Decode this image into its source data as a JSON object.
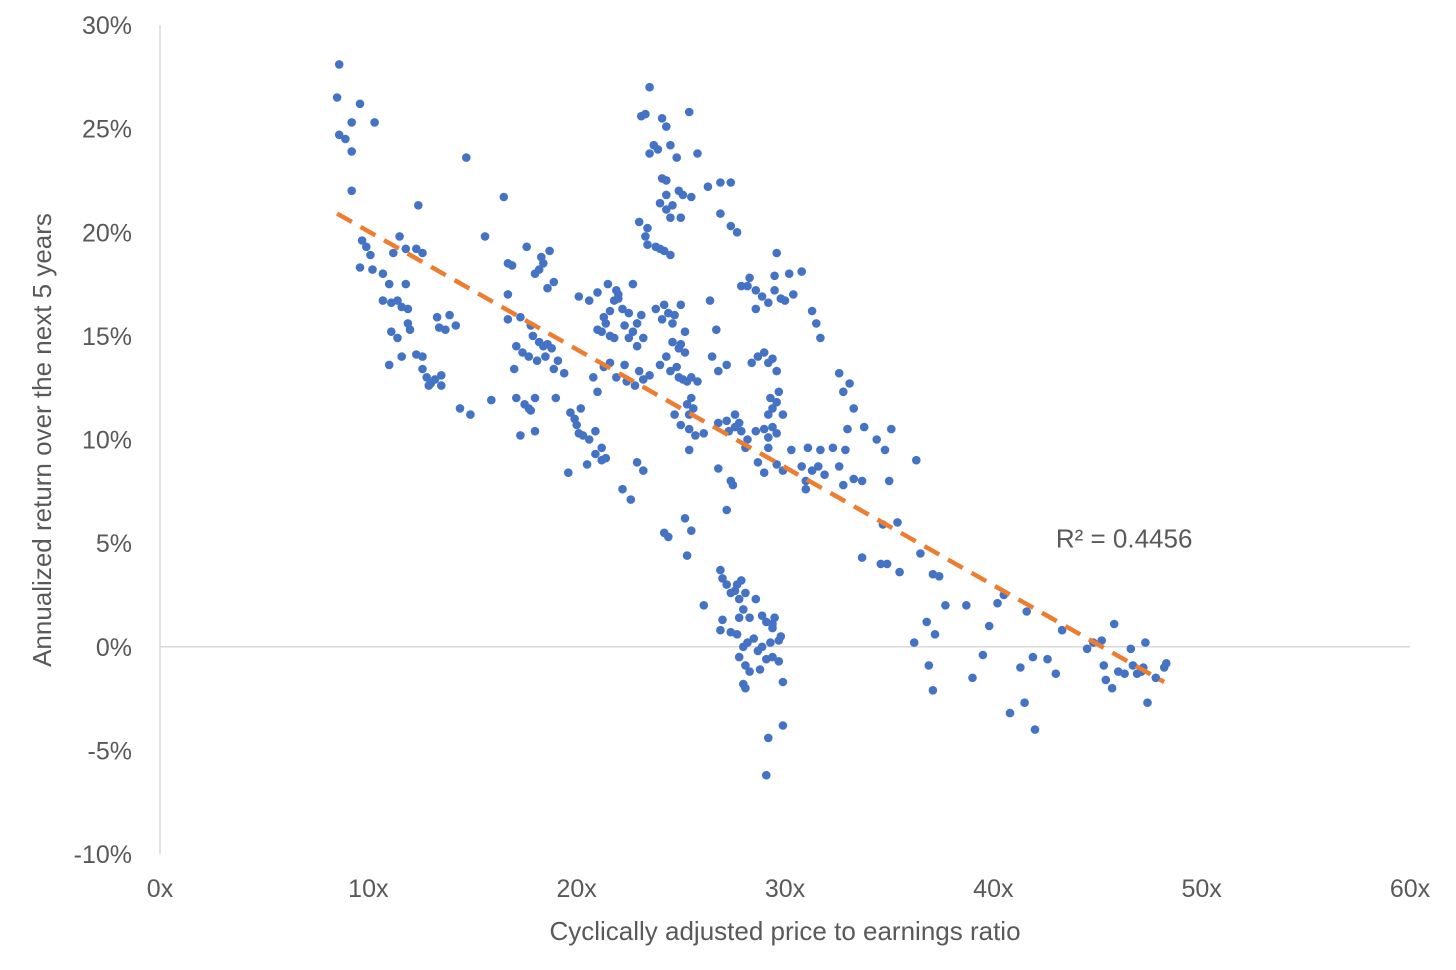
{
  "chart_data": {
    "type": "scatter",
    "xlabel": "Cyclically adjusted price to earnings ratio",
    "ylabel": "Annualized return over the next 5 years",
    "xlim": [
      0,
      60
    ],
    "ylim": [
      -10,
      30
    ],
    "x_ticks": [
      0,
      10,
      20,
      30,
      40,
      50,
      60
    ],
    "x_tick_labels": [
      "0x",
      "10x",
      "20x",
      "30x",
      "40x",
      "50x",
      "60x"
    ],
    "y_ticks": [
      -10,
      -5,
      0,
      5,
      10,
      15,
      20,
      25,
      30
    ],
    "y_tick_labels": [
      "-10%",
      "-5%",
      "0%",
      "5%",
      "10%",
      "15%",
      "20%",
      "25%",
      "30%"
    ],
    "grid": false,
    "legend": "none",
    "point_color": "#4472C4",
    "trendline": {
      "type": "linear",
      "color": "#ED7D31",
      "style": "dashed",
      "x": [
        8.5,
        48.2
      ],
      "y": [
        20.9,
        -1.7
      ]
    },
    "annotations": [
      {
        "text": "R² = 0.4456",
        "x": 43,
        "y": 4.8
      }
    ],
    "points": [
      [
        8.6,
        28.1
      ],
      [
        8.5,
        26.5
      ],
      [
        8.6,
        24.7
      ],
      [
        8.9,
        24.5
      ],
      [
        9.2,
        23.9
      ],
      [
        9.2,
        25.3
      ],
      [
        9.6,
        26.2
      ],
      [
        10.3,
        25.3
      ],
      [
        9.2,
        22.0
      ],
      [
        9.7,
        19.6
      ],
      [
        9.9,
        19.3
      ],
      [
        10.1,
        18.9
      ],
      [
        9.6,
        18.3
      ],
      [
        10.2,
        18.2
      ],
      [
        10.7,
        18.0
      ],
      [
        11.2,
        19.0
      ],
      [
        11.5,
        19.8
      ],
      [
        11.8,
        19.2
      ],
      [
        12.3,
        19.2
      ],
      [
        12.6,
        19.0
      ],
      [
        12.4,
        21.3
      ],
      [
        11.0,
        17.5
      ],
      [
        11.8,
        17.5
      ],
      [
        10.7,
        16.7
      ],
      [
        11.1,
        16.6
      ],
      [
        11.4,
        16.7
      ],
      [
        11.6,
        16.4
      ],
      [
        11.9,
        16.3
      ],
      [
        11.9,
        15.6
      ],
      [
        11.1,
        15.2
      ],
      [
        11.4,
        14.9
      ],
      [
        12.0,
        15.3
      ],
      [
        11.0,
        13.6
      ],
      [
        11.6,
        14.0
      ],
      [
        12.3,
        14.1
      ],
      [
        12.6,
        13.4
      ],
      [
        12.6,
        14.0
      ],
      [
        12.8,
        13.0
      ],
      [
        13.0,
        12.7
      ],
      [
        12.9,
        12.6
      ],
      [
        13.2,
        12.9
      ],
      [
        13.5,
        13.1
      ],
      [
        13.5,
        12.6
      ],
      [
        13.4,
        15.4
      ],
      [
        13.7,
        15.3
      ],
      [
        13.3,
        15.9
      ],
      [
        13.9,
        16.0
      ],
      [
        14.2,
        15.5
      ],
      [
        14.4,
        11.5
      ],
      [
        14.9,
        11.2
      ],
      [
        14.7,
        23.6
      ],
      [
        15.6,
        19.8
      ],
      [
        15.9,
        11.9
      ],
      [
        16.5,
        21.7
      ],
      [
        16.7,
        18.5
      ],
      [
        16.9,
        18.4
      ],
      [
        16.7,
        17.0
      ],
      [
        16.7,
        15.8
      ],
      [
        17.3,
        15.9
      ],
      [
        17.1,
        14.5
      ],
      [
        17.4,
        14.2
      ],
      [
        17.7,
        14.0
      ],
      [
        17.0,
        13.4
      ],
      [
        17.1,
        12.0
      ],
      [
        17.5,
        11.7
      ],
      [
        17.7,
        11.5
      ],
      [
        17.3,
        10.2
      ],
      [
        18.0,
        10.4
      ],
      [
        17.8,
        11.4
      ],
      [
        18.0,
        12.0
      ],
      [
        17.6,
        19.3
      ],
      [
        18.0,
        18.0
      ],
      [
        18.2,
        18.2
      ],
      [
        18.3,
        18.8
      ],
      [
        18.7,
        19.1
      ],
      [
        18.4,
        18.5
      ],
      [
        18.9,
        17.6
      ],
      [
        18.6,
        17.3
      ],
      [
        17.8,
        15.5
      ],
      [
        17.9,
        15.0
      ],
      [
        18.2,
        14.7
      ],
      [
        18.4,
        14.5
      ],
      [
        18.6,
        14.6
      ],
      [
        18.8,
        14.4
      ],
      [
        18.1,
        13.8
      ],
      [
        18.5,
        14.0
      ],
      [
        18.9,
        13.4
      ],
      [
        19.1,
        13.8
      ],
      [
        19.4,
        13.2
      ],
      [
        19.0,
        12.0
      ],
      [
        19.7,
        11.3
      ],
      [
        19.9,
        11.0
      ],
      [
        20.2,
        11.5
      ],
      [
        20.0,
        10.7
      ],
      [
        20.1,
        10.3
      ],
      [
        20.3,
        10.2
      ],
      [
        20.6,
        10.0
      ],
      [
        20.9,
        10.4
      ],
      [
        21.2,
        9.6
      ],
      [
        20.9,
        9.3
      ],
      [
        21.2,
        9.0
      ],
      [
        21.4,
        9.1
      ],
      [
        20.5,
        8.8
      ],
      [
        19.6,
        8.4
      ],
      [
        21.0,
        12.3
      ],
      [
        21.3,
        13.5
      ],
      [
        20.8,
        13.0
      ],
      [
        21.0,
        15.3
      ],
      [
        21.4,
        15.6
      ],
      [
        21.2,
        15.2
      ],
      [
        21.6,
        15.0
      ],
      [
        21.8,
        14.9
      ],
      [
        21.3,
        15.9
      ],
      [
        21.6,
        16.2
      ],
      [
        21.5,
        17.5
      ],
      [
        21.9,
        17.2
      ],
      [
        21.8,
        16.7
      ],
      [
        22.2,
        16.3
      ],
      [
        22.5,
        16.1
      ],
      [
        22.3,
        15.5
      ],
      [
        22.7,
        15.2
      ],
      [
        22.9,
        15.6
      ],
      [
        23.1,
        16.0
      ],
      [
        22.5,
        14.9
      ],
      [
        22.9,
        14.5
      ],
      [
        23.2,
        14.9
      ],
      [
        23.0,
        13.3
      ],
      [
        22.3,
        13.6
      ],
      [
        21.6,
        13.7
      ],
      [
        21.9,
        13.0
      ],
      [
        22.4,
        12.8
      ],
      [
        22.8,
        12.6
      ],
      [
        23.2,
        12.9
      ],
      [
        23.5,
        13.1
      ],
      [
        22.7,
        17.5
      ],
      [
        22.0,
        17.0
      ],
      [
        20.1,
        16.9
      ],
      [
        20.6,
        16.7
      ],
      [
        21.0,
        17.1
      ],
      [
        22.0,
        16.8
      ],
      [
        22.2,
        7.6
      ],
      [
        22.6,
        7.1
      ],
      [
        22.9,
        8.9
      ],
      [
        23.2,
        8.5
      ],
      [
        24.2,
        5.5
      ],
      [
        24.4,
        5.3
      ],
      [
        25.2,
        6.2
      ],
      [
        25.5,
        5.6
      ],
      [
        25.3,
        4.4
      ],
      [
        26.1,
        2.0
      ],
      [
        23.0,
        20.5
      ],
      [
        23.4,
        20.2
      ],
      [
        23.3,
        19.8
      ],
      [
        23.4,
        19.4
      ],
      [
        23.8,
        19.3
      ],
      [
        24.0,
        19.2
      ],
      [
        24.2,
        19.1
      ],
      [
        24.5,
        18.9
      ],
      [
        23.1,
        25.6
      ],
      [
        23.3,
        25.7
      ],
      [
        23.5,
        27.0
      ],
      [
        23.5,
        23.8
      ],
      [
        23.7,
        24.2
      ],
      [
        23.9,
        24.0
      ],
      [
        24.1,
        25.5
      ],
      [
        24.3,
        25.1
      ],
      [
        24.5,
        24.2
      ],
      [
        24.8,
        23.6
      ],
      [
        24.1,
        22.6
      ],
      [
        24.3,
        22.5
      ],
      [
        24.3,
        21.8
      ],
      [
        24.6,
        21.3
      ],
      [
        24.9,
        22.0
      ],
      [
        25.1,
        21.8
      ],
      [
        24.0,
        21.4
      ],
      [
        24.3,
        21.1
      ],
      [
        24.5,
        20.7
      ],
      [
        25.0,
        20.7
      ],
      [
        25.4,
        25.8
      ],
      [
        25.5,
        21.7
      ],
      [
        25.8,
        23.8
      ],
      [
        23.8,
        16.3
      ],
      [
        24.2,
        16.5
      ],
      [
        24.4,
        16.1
      ],
      [
        24.7,
        16.0
      ],
      [
        24.1,
        15.8
      ],
      [
        24.6,
        14.7
      ],
      [
        24.9,
        14.4
      ],
      [
        25.2,
        14.2
      ],
      [
        24.3,
        14.0
      ],
      [
        24.0,
        13.6
      ],
      [
        24.5,
        13.3
      ],
      [
        24.8,
        13.5
      ],
      [
        24.9,
        13.0
      ],
      [
        25.1,
        12.9
      ],
      [
        25.3,
        12.8
      ],
      [
        25.5,
        13.0
      ],
      [
        25.8,
        12.8
      ],
      [
        25.5,
        12.0
      ],
      [
        25.3,
        11.7
      ],
      [
        25.6,
        11.5
      ],
      [
        25.4,
        11.2
      ],
      [
        24.7,
        11.2
      ],
      [
        25.0,
        10.7
      ],
      [
        25.4,
        10.5
      ],
      [
        25.7,
        10.2
      ],
      [
        26.1,
        10.3
      ],
      [
        25.4,
        9.5
      ],
      [
        25.0,
        16.5
      ],
      [
        24.6,
        15.6
      ],
      [
        25.2,
        15.2
      ],
      [
        25.0,
        14.6
      ],
      [
        26.4,
        16.7
      ],
      [
        26.5,
        14.0
      ],
      [
        26.8,
        13.3
      ],
      [
        27.2,
        13.6
      ],
      [
        26.7,
        15.3
      ],
      [
        26.3,
        22.2
      ],
      [
        26.9,
        22.4
      ],
      [
        27.4,
        22.4
      ],
      [
        26.9,
        20.9
      ],
      [
        27.4,
        20.3
      ],
      [
        27.7,
        20.0
      ],
      [
        26.8,
        10.8
      ],
      [
        27.2,
        10.9
      ],
      [
        27.3,
        10.4
      ],
      [
        27.6,
        10.6
      ],
      [
        27.8,
        10.8
      ],
      [
        27.9,
        10.4
      ],
      [
        27.6,
        11.2
      ],
      [
        28.2,
        10.0
      ],
      [
        28.6,
        10.4
      ],
      [
        28.1,
        9.6
      ],
      [
        26.8,
        8.6
      ],
      [
        27.4,
        8.0
      ],
      [
        27.5,
        7.8
      ],
      [
        27.2,
        6.6
      ],
      [
        26.9,
        3.7
      ],
      [
        27.0,
        3.3
      ],
      [
        27.2,
        3.0
      ],
      [
        27.4,
        2.6
      ],
      [
        27.7,
        3.0
      ],
      [
        27.6,
        2.7
      ],
      [
        27.9,
        3.2
      ],
      [
        27.8,
        2.3
      ],
      [
        28.1,
        2.6
      ],
      [
        28.0,
        1.8
      ],
      [
        27.8,
        1.4
      ],
      [
        28.3,
        1.4
      ],
      [
        28.6,
        2.3
      ],
      [
        28.9,
        1.5
      ],
      [
        29.1,
        1.2
      ],
      [
        29.4,
        1.1
      ],
      [
        29.4,
        0.9
      ],
      [
        29.5,
        1.4
      ],
      [
        29.8,
        0.5
      ],
      [
        29.7,
        0.3
      ],
      [
        29.3,
        0.2
      ],
      [
        28.9,
        0.0
      ],
      [
        28.7,
        -0.2
      ],
      [
        28.5,
        0.4
      ],
      [
        28.2,
        0.2
      ],
      [
        28.0,
        0.0
      ],
      [
        27.7,
        0.6
      ],
      [
        27.4,
        0.7
      ],
      [
        27.0,
        1.3
      ],
      [
        26.9,
        0.8
      ],
      [
        27.8,
        -0.5
      ],
      [
        28.1,
        -0.9
      ],
      [
        28.3,
        -1.2
      ],
      [
        28.0,
        -1.8
      ],
      [
        28.1,
        -2.0
      ],
      [
        28.8,
        -1.1
      ],
      [
        29.1,
        -0.6
      ],
      [
        29.4,
        -0.5
      ],
      [
        29.7,
        -0.7
      ],
      [
        29.9,
        -1.7
      ],
      [
        29.2,
        -4.4
      ],
      [
        29.1,
        -6.2
      ],
      [
        29.9,
        -3.8
      ],
      [
        27.9,
        17.4
      ],
      [
        28.2,
        17.4
      ],
      [
        28.3,
        17.8
      ],
      [
        28.6,
        17.2
      ],
      [
        28.9,
        16.9
      ],
      [
        29.2,
        16.6
      ],
      [
        29.5,
        17.2
      ],
      [
        29.8,
        16.8
      ],
      [
        29.5,
        17.9
      ],
      [
        29.6,
        19.0
      ],
      [
        30.2,
        18.0
      ],
      [
        30.4,
        17.0
      ],
      [
        30.8,
        18.1
      ],
      [
        31.3,
        16.2
      ],
      [
        31.5,
        15.6
      ],
      [
        31.7,
        14.9
      ],
      [
        30.0,
        16.7
      ],
      [
        28.6,
        16.3
      ],
      [
        28.4,
        13.7
      ],
      [
        28.7,
        14.0
      ],
      [
        29.0,
        14.2
      ],
      [
        29.2,
        13.7
      ],
      [
        29.4,
        13.9
      ],
      [
        29.6,
        13.3
      ],
      [
        29.7,
        12.3
      ],
      [
        29.4,
        11.5
      ],
      [
        29.2,
        11.2
      ],
      [
        29.6,
        11.8
      ],
      [
        29.3,
        12.0
      ],
      [
        29.9,
        11.2
      ],
      [
        29.0,
        10.5
      ],
      [
        29.2,
        10.1
      ],
      [
        29.4,
        10.6
      ],
      [
        29.6,
        10.3
      ],
      [
        29.2,
        9.6
      ],
      [
        28.7,
        8.9
      ],
      [
        29.0,
        8.4
      ],
      [
        29.6,
        8.8
      ],
      [
        29.9,
        8.5
      ],
      [
        30.3,
        9.5
      ],
      [
        30.8,
        8.7
      ],
      [
        31.1,
        9.6
      ],
      [
        31.7,
        9.5
      ],
      [
        31.3,
        8.5
      ],
      [
        31.6,
        8.7
      ],
      [
        31.9,
        8.3
      ],
      [
        31.0,
        8.0
      ],
      [
        31.0,
        7.6
      ],
      [
        32.6,
        13.2
      ],
      [
        32.8,
        12.3
      ],
      [
        33.1,
        12.7
      ],
      [
        33.3,
        11.5
      ],
      [
        33.0,
        10.5
      ],
      [
        32.3,
        9.6
      ],
      [
        32.6,
        8.7
      ],
      [
        32.9,
        9.5
      ],
      [
        33.3,
        8.1
      ],
      [
        32.8,
        7.8
      ],
      [
        33.8,
        10.6
      ],
      [
        34.4,
        10.0
      ],
      [
        34.8,
        9.5
      ],
      [
        35.1,
        10.5
      ],
      [
        33.7,
        8.0
      ],
      [
        35.0,
        8.0
      ],
      [
        34.7,
        5.9
      ],
      [
        35.4,
        6.0
      ],
      [
        33.7,
        4.3
      ],
      [
        34.6,
        4.0
      ],
      [
        34.9,
        4.0
      ],
      [
        35.5,
        3.6
      ],
      [
        36.3,
        9.0
      ],
      [
        36.2,
        0.2
      ],
      [
        36.5,
        4.5
      ],
      [
        36.8,
        1.2
      ],
      [
        37.1,
        3.5
      ],
      [
        37.4,
        3.4
      ],
      [
        37.2,
        0.6
      ],
      [
        36.9,
        -0.9
      ],
      [
        37.1,
        -2.1
      ],
      [
        37.7,
        2.0
      ],
      [
        38.7,
        2.0
      ],
      [
        39.0,
        -1.5
      ],
      [
        39.5,
        -0.4
      ],
      [
        39.8,
        1.0
      ],
      [
        40.2,
        2.1
      ],
      [
        40.5,
        2.5
      ],
      [
        40.8,
        -3.2
      ],
      [
        41.3,
        -1.0
      ],
      [
        41.5,
        -2.7
      ],
      [
        41.6,
        1.7
      ],
      [
        41.9,
        -0.5
      ],
      [
        42.0,
        -4.0
      ],
      [
        42.6,
        -0.6
      ],
      [
        43.0,
        -1.3
      ],
      [
        43.3,
        0.8
      ],
      [
        44.5,
        -0.1
      ],
      [
        44.8,
        0.2
      ],
      [
        45.2,
        0.3
      ],
      [
        45.3,
        -0.9
      ],
      [
        45.4,
        -1.6
      ],
      [
        45.7,
        -2.0
      ],
      [
        45.8,
        1.1
      ],
      [
        46.0,
        -1.2
      ],
      [
        46.3,
        -1.3
      ],
      [
        46.6,
        -0.1
      ],
      [
        46.7,
        -0.9
      ],
      [
        46.9,
        -1.3
      ],
      [
        47.1,
        -1.2
      ],
      [
        47.2,
        -1.0
      ],
      [
        47.4,
        -2.7
      ],
      [
        47.3,
        0.2
      ],
      [
        47.8,
        -1.5
      ],
      [
        48.2,
        -1.0
      ],
      [
        48.3,
        -0.8
      ]
    ]
  }
}
